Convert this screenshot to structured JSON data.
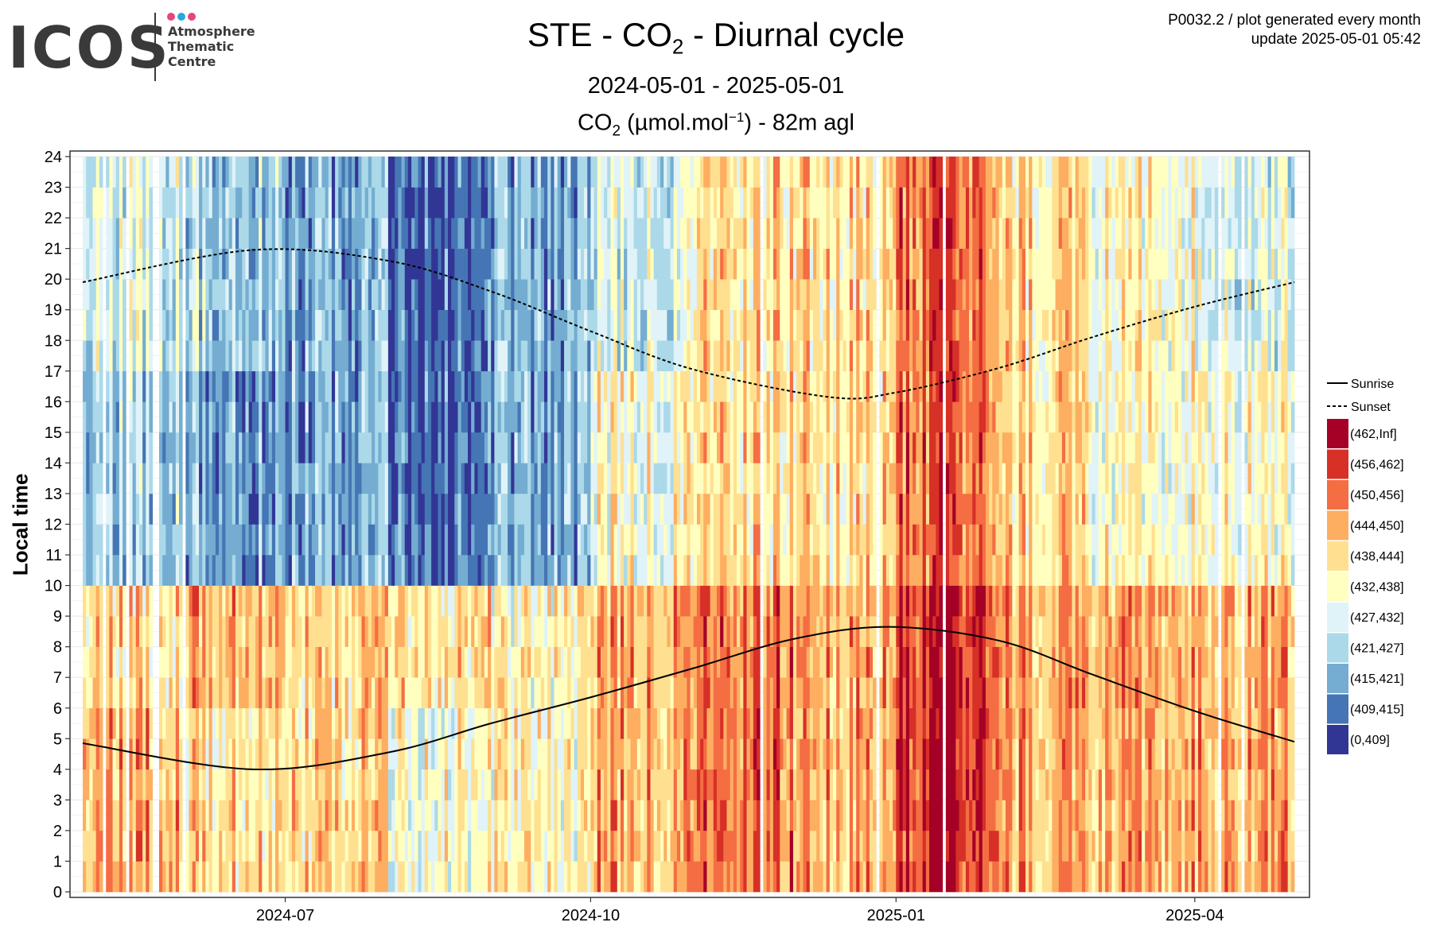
{
  "header": {
    "logo": {
      "name": "ICOS",
      "line1": "Atmosphere",
      "line2": "Thematic",
      "line3": "Centre",
      "dot_colors": [
        "#e8457b",
        "#2aa7e1",
        "#e8457b"
      ]
    },
    "product_line": "P0032.2 / plot generated every month",
    "update_line": "update  2025-05-01 05:42"
  },
  "chart_data": {
    "type": "heatmap",
    "title_prefix": "STE - CO",
    "title_sub": "2",
    "title_suffix": " - Diurnal cycle",
    "subtitle": "2024-05-01 - 2025-05-01",
    "variable_prefix": "CO",
    "variable_sub": "2",
    "variable_mid": " (µmol.mol",
    "variable_sup": "−1",
    "variable_suffix": ") - 82m agl",
    "xlabel": "",
    "ylabel": "Local time",
    "x_range": [
      "2024-05-01",
      "2025-05-01"
    ],
    "y_range": [
      0,
      24
    ],
    "x_ticks": [
      "2024-07",
      "2024-10",
      "2025-01",
      "2025-04"
    ],
    "y_ticks": [
      0,
      1,
      2,
      3,
      4,
      5,
      6,
      7,
      8,
      9,
      10,
      11,
      12,
      13,
      14,
      15,
      16,
      17,
      18,
      19,
      20,
      21,
      22,
      23,
      24
    ],
    "grid": true,
    "legend_position": "right",
    "bins": [
      {
        "label": "(462,Inf]",
        "color": "#a50026"
      },
      {
        "label": "(456,462]",
        "color": "#d73027"
      },
      {
        "label": "(450,456]",
        "color": "#f46d43"
      },
      {
        "label": "(444,450]",
        "color": "#fdae61"
      },
      {
        "label": "(438,444]",
        "color": "#fee090"
      },
      {
        "label": "(432,438]",
        "color": "#ffffbf"
      },
      {
        "label": "(427,432]",
        "color": "#e0f3f8"
      },
      {
        "label": "(421,427]",
        "color": "#abd9e9"
      },
      {
        "label": "(415,421]",
        "color": "#74add1"
      },
      {
        "label": "(409,415]",
        "color": "#4575b4"
      },
      {
        "label": "(0,409]",
        "color": "#313695"
      }
    ],
    "monthly_typical_bin": [
      {
        "month": "2024-05",
        "night": "(444,450]",
        "morning": "(438,444]",
        "day": "(421,427]",
        "evening": "(427,432]"
      },
      {
        "month": "2024-06",
        "night": "(438,444]",
        "morning": "(444,450]",
        "day": "(415,421]",
        "evening": "(421,427]"
      },
      {
        "month": "2024-07",
        "night": "(438,444]",
        "morning": "(438,444]",
        "day": "(415,421]",
        "evening": "(415,421]"
      },
      {
        "month": "2024-08",
        "night": "(432,438]",
        "morning": "(438,444]",
        "day": "(409,415]",
        "evening": "(409,415]"
      },
      {
        "month": "2024-09",
        "night": "(432,438]",
        "morning": "(432,438]",
        "day": "(415,421]",
        "evening": "(415,421]"
      },
      {
        "month": "2024-10",
        "night": "(444,450]",
        "morning": "(444,450]",
        "day": "(432,438]",
        "evening": "(427,432]"
      },
      {
        "month": "2024-11",
        "night": "(450,456]",
        "morning": "(450,456]",
        "day": "(438,444]",
        "evening": "(438,444]"
      },
      {
        "month": "2024-12",
        "night": "(444,450]",
        "morning": "(444,450]",
        "day": "(438,444]",
        "evening": "(438,444]"
      },
      {
        "month": "2025-01",
        "night": "(456,462]",
        "morning": "(456,462]",
        "day": "(450,456]",
        "evening": "(450,456]"
      },
      {
        "month": "2025-02",
        "night": "(444,450]",
        "morning": "(444,450]",
        "day": "(438,444]",
        "evening": "(438,444]"
      },
      {
        "month": "2025-03",
        "night": "(444,450]",
        "morning": "(444,450]",
        "day": "(432,438]",
        "evening": "(432,438]"
      },
      {
        "month": "2025-04",
        "night": "(444,450]",
        "morning": "(444,450]",
        "day": "(432,438]",
        "evening": "(427,432]"
      }
    ],
    "sunrise": {
      "name": "Sunrise",
      "style": "solid",
      "points": [
        {
          "date": "2024-05-01",
          "hour": 4.85
        },
        {
          "date": "2024-06-21",
          "hour": 4.0
        },
        {
          "date": "2024-08-01",
          "hour": 4.55
        },
        {
          "date": "2024-09-01",
          "hour": 5.5
        },
        {
          "date": "2024-10-01",
          "hour": 6.35
        },
        {
          "date": "2024-11-01",
          "hour": 7.3
        },
        {
          "date": "2024-12-01",
          "hour": 8.25
        },
        {
          "date": "2024-12-30",
          "hour": 8.65
        },
        {
          "date": "2025-02-01",
          "hour": 8.2
        },
        {
          "date": "2025-03-01",
          "hour": 7.1
        },
        {
          "date": "2025-04-01",
          "hour": 5.9
        },
        {
          "date": "2025-05-01",
          "hour": 4.9
        }
      ]
    },
    "sunset": {
      "name": "Sunset",
      "style": "dashed",
      "points": [
        {
          "date": "2024-05-01",
          "hour": 19.9
        },
        {
          "date": "2024-06-21",
          "hour": 20.95
        },
        {
          "date": "2024-08-01",
          "hour": 20.6
        },
        {
          "date": "2024-09-01",
          "hour": 19.6
        },
        {
          "date": "2024-10-01",
          "hour": 18.3
        },
        {
          "date": "2024-11-01",
          "hour": 17.05
        },
        {
          "date": "2024-12-12",
          "hour": 16.15
        },
        {
          "date": "2025-01-01",
          "hour": 16.3
        },
        {
          "date": "2025-02-01",
          "hour": 17.1
        },
        {
          "date": "2025-03-01",
          "hour": 18.1
        },
        {
          "date": "2025-04-01",
          "hour": 19.1
        },
        {
          "date": "2025-05-01",
          "hour": 19.9
        }
      ]
    }
  }
}
